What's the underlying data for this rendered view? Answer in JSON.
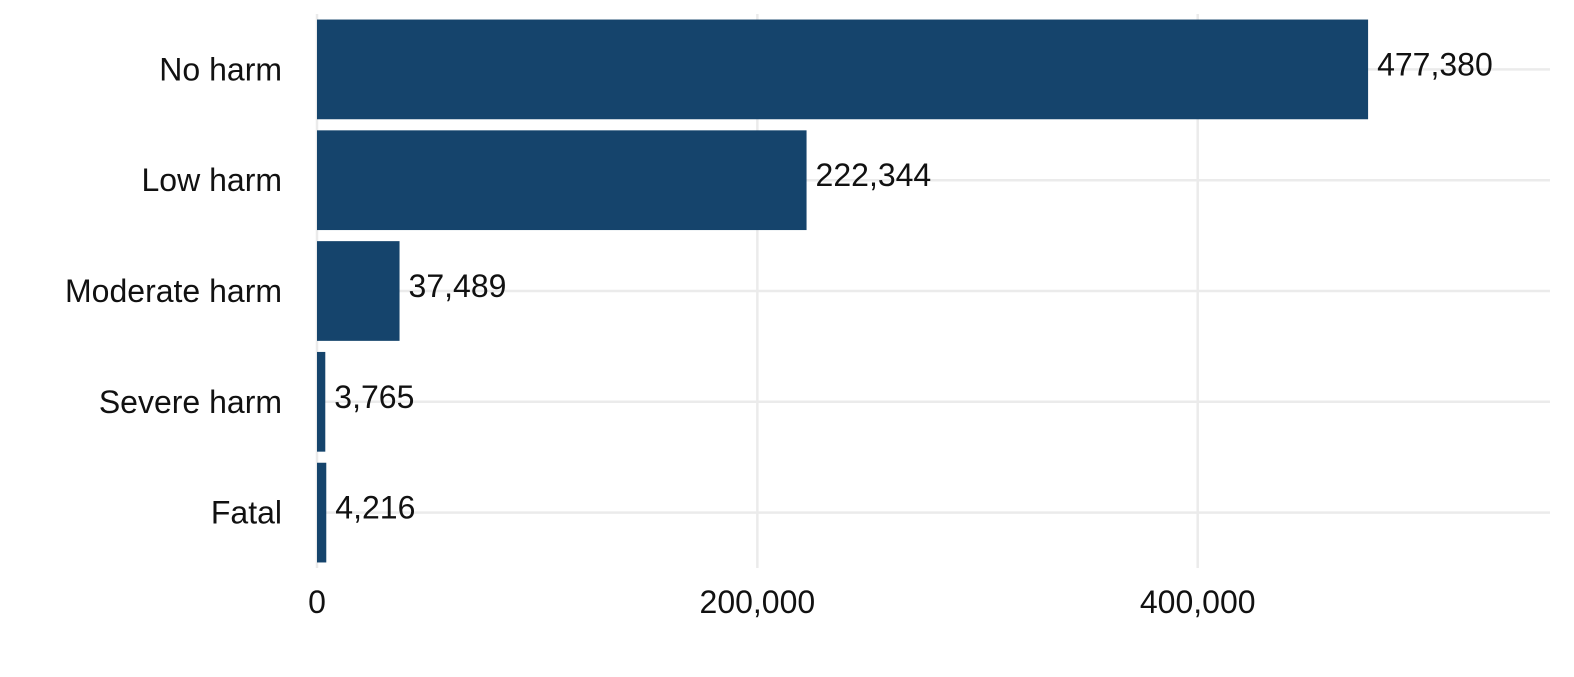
{
  "chart_data": {
    "type": "bar",
    "orientation": "horizontal",
    "title": "",
    "xlabel": "",
    "ylabel": "",
    "categories": [
      "No harm",
      "Low harm",
      "Moderate harm",
      "Severe harm",
      "Fatal"
    ],
    "values": [
      477380,
      222344,
      37489,
      3765,
      4216
    ],
    "value_labels": [
      "477,380",
      "222,344",
      "37,489",
      "3,765",
      "4,216"
    ],
    "xlim": [
      0,
      560000
    ],
    "x_ticks": [
      0,
      200000,
      400000
    ],
    "x_tick_labels": [
      "0",
      "200,000",
      "400,000"
    ],
    "grid": true,
    "legend": "none",
    "colors": {
      "bar": "#15446c",
      "grid": "#ebebeb",
      "text": "#111111"
    }
  }
}
